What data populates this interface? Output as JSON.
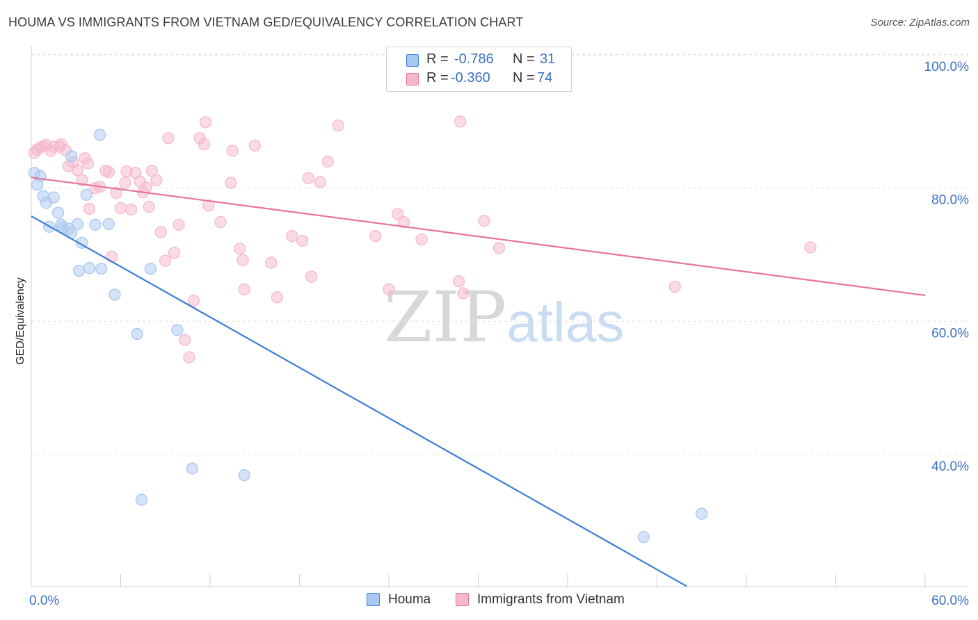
{
  "title": "HOUMA VS IMMIGRANTS FROM VIETNAM GED/EQUIVALENCY CORRELATION CHART",
  "source": "Source: ZipAtlas.com",
  "watermark": {
    "zip": "ZIP",
    "atlas": "atlas"
  },
  "stats": [
    {
      "r_label": "R =",
      "r_value": "-0.786",
      "n_label": "N =",
      "n_value": "31",
      "color": "#a9c8f0"
    },
    {
      "r_label": "R =",
      "r_value": "-0.360",
      "n_label": "N =",
      "n_value": "74",
      "color": "#f6b8cb"
    }
  ],
  "legend": [
    {
      "label": "Houma",
      "color": "#a9c8f0"
    },
    {
      "label": "Immigrants from Vietnam",
      "color": "#f6b8cb"
    }
  ],
  "chart_data": {
    "type": "scatter",
    "title": "HOUMA VS IMMIGRANTS FROM VIETNAM GED/EQUIVALENCY CORRELATION CHART",
    "xlabel": "",
    "ylabel": "GED/Equivalency",
    "xlim": [
      0,
      60
    ],
    "ylim": [
      20,
      103
    ],
    "x_tick_labels": [
      "0.0%",
      "60.0%"
    ],
    "y_ticks": [
      40,
      60,
      80,
      100
    ],
    "y_tick_labels": [
      "40.0%",
      "60.0%",
      "80.0%",
      "100.0%"
    ],
    "grid": true,
    "legend_position": "bottom",
    "series": [
      {
        "name": "Houma",
        "color": "#3b7dd8",
        "fill": "#a9c8f0",
        "trend": {
          "x": [
            0,
            44
          ],
          "y": [
            75.8,
            20.2
          ]
        },
        "points": [
          {
            "x": 0.2,
            "y": 82.3
          },
          {
            "x": 0.4,
            "y": 80.5
          },
          {
            "x": 0.6,
            "y": 81.8
          },
          {
            "x": 0.8,
            "y": 78.8
          },
          {
            "x": 1.0,
            "y": 77.8
          },
          {
            "x": 1.2,
            "y": 74.2
          },
          {
            "x": 1.5,
            "y": 78.6
          },
          {
            "x": 1.8,
            "y": 76.3
          },
          {
            "x": 2.0,
            "y": 74.5
          },
          {
            "x": 2.1,
            "y": 74.1
          },
          {
            "x": 2.5,
            "y": 73.9
          },
          {
            "x": 2.7,
            "y": 73.3
          },
          {
            "x": 2.7,
            "y": 84.8
          },
          {
            "x": 3.1,
            "y": 74.6
          },
          {
            "x": 3.2,
            "y": 67.6
          },
          {
            "x": 3.4,
            "y": 71.8
          },
          {
            "x": 3.7,
            "y": 79.0
          },
          {
            "x": 3.9,
            "y": 68.0
          },
          {
            "x": 4.3,
            "y": 74.5
          },
          {
            "x": 4.6,
            "y": 88.0
          },
          {
            "x": 4.7,
            "y": 67.9
          },
          {
            "x": 5.2,
            "y": 74.6
          },
          {
            "x": 5.6,
            "y": 64.0
          },
          {
            "x": 7.1,
            "y": 58.1
          },
          {
            "x": 7.4,
            "y": 33.2
          },
          {
            "x": 8.0,
            "y": 67.9
          },
          {
            "x": 9.8,
            "y": 58.7
          },
          {
            "x": 10.8,
            "y": 37.9
          },
          {
            "x": 14.3,
            "y": 36.9
          },
          {
            "x": 41.1,
            "y": 27.6
          },
          {
            "x": 45.0,
            "y": 31.1
          }
        ]
      },
      {
        "name": "Immigrants from Vietnam",
        "color": "#e8739c",
        "fill": "#f6b8cb",
        "trend": {
          "x": [
            0,
            60
          ],
          "y": [
            81.6,
            63.9
          ]
        },
        "points": [
          {
            "x": 0.2,
            "y": 85.3
          },
          {
            "x": 0.4,
            "y": 85.8
          },
          {
            "x": 0.6,
            "y": 86.1
          },
          {
            "x": 0.8,
            "y": 86.3
          },
          {
            "x": 1.0,
            "y": 86.5
          },
          {
            "x": 1.3,
            "y": 85.6
          },
          {
            "x": 1.5,
            "y": 86.2
          },
          {
            "x": 1.9,
            "y": 86.2
          },
          {
            "x": 2.0,
            "y": 86.6
          },
          {
            "x": 2.3,
            "y": 85.7
          },
          {
            "x": 2.5,
            "y": 83.3
          },
          {
            "x": 2.8,
            "y": 83.9
          },
          {
            "x": 3.1,
            "y": 82.7
          },
          {
            "x": 3.4,
            "y": 81.2
          },
          {
            "x": 3.6,
            "y": 84.5
          },
          {
            "x": 3.8,
            "y": 83.7
          },
          {
            "x": 3.9,
            "y": 76.9
          },
          {
            "x": 4.3,
            "y": 80.0
          },
          {
            "x": 4.6,
            "y": 80.2
          },
          {
            "x": 5.0,
            "y": 82.6
          },
          {
            "x": 5.2,
            "y": 82.4
          },
          {
            "x": 5.4,
            "y": 69.7
          },
          {
            "x": 5.7,
            "y": 79.3
          },
          {
            "x": 6.0,
            "y": 77.0
          },
          {
            "x": 6.3,
            "y": 80.8
          },
          {
            "x": 6.4,
            "y": 82.5
          },
          {
            "x": 6.7,
            "y": 76.8
          },
          {
            "x": 7.0,
            "y": 82.3
          },
          {
            "x": 7.3,
            "y": 81.0
          },
          {
            "x": 7.5,
            "y": 79.4
          },
          {
            "x": 7.7,
            "y": 80.1
          },
          {
            "x": 7.9,
            "y": 77.2
          },
          {
            "x": 8.1,
            "y": 82.6
          },
          {
            "x": 8.4,
            "y": 81.2
          },
          {
            "x": 8.7,
            "y": 73.4
          },
          {
            "x": 9.0,
            "y": 69.1
          },
          {
            "x": 9.2,
            "y": 87.5
          },
          {
            "x": 9.6,
            "y": 70.3
          },
          {
            "x": 9.9,
            "y": 74.5
          },
          {
            "x": 10.3,
            "y": 57.2
          },
          {
            "x": 10.6,
            "y": 54.6
          },
          {
            "x": 10.9,
            "y": 63.1
          },
          {
            "x": 11.3,
            "y": 87.5
          },
          {
            "x": 11.6,
            "y": 86.6
          },
          {
            "x": 11.7,
            "y": 89.9
          },
          {
            "x": 11.9,
            "y": 77.4
          },
          {
            "x": 12.7,
            "y": 74.9
          },
          {
            "x": 13.4,
            "y": 80.8
          },
          {
            "x": 13.5,
            "y": 85.6
          },
          {
            "x": 14.0,
            "y": 70.9
          },
          {
            "x": 14.2,
            "y": 69.2
          },
          {
            "x": 14.3,
            "y": 64.8
          },
          {
            "x": 15.0,
            "y": 86.4
          },
          {
            "x": 16.1,
            "y": 68.8
          },
          {
            "x": 16.5,
            "y": 63.6
          },
          {
            "x": 17.5,
            "y": 72.8
          },
          {
            "x": 18.2,
            "y": 72.1
          },
          {
            "x": 18.6,
            "y": 81.5
          },
          {
            "x": 18.8,
            "y": 66.7
          },
          {
            "x": 19.4,
            "y": 80.9
          },
          {
            "x": 19.9,
            "y": 84.0
          },
          {
            "x": 20.6,
            "y": 89.4
          },
          {
            "x": 23.1,
            "y": 72.8
          },
          {
            "x": 24.0,
            "y": 64.8
          },
          {
            "x": 24.6,
            "y": 76.1
          },
          {
            "x": 25.0,
            "y": 74.9
          },
          {
            "x": 26.2,
            "y": 72.3
          },
          {
            "x": 28.7,
            "y": 66.0
          },
          {
            "x": 28.8,
            "y": 90.0
          },
          {
            "x": 29.0,
            "y": 64.2
          },
          {
            "x": 30.4,
            "y": 75.1
          },
          {
            "x": 31.4,
            "y": 71.0
          },
          {
            "x": 43.2,
            "y": 65.2
          },
          {
            "x": 52.3,
            "y": 71.1
          }
        ]
      }
    ]
  }
}
